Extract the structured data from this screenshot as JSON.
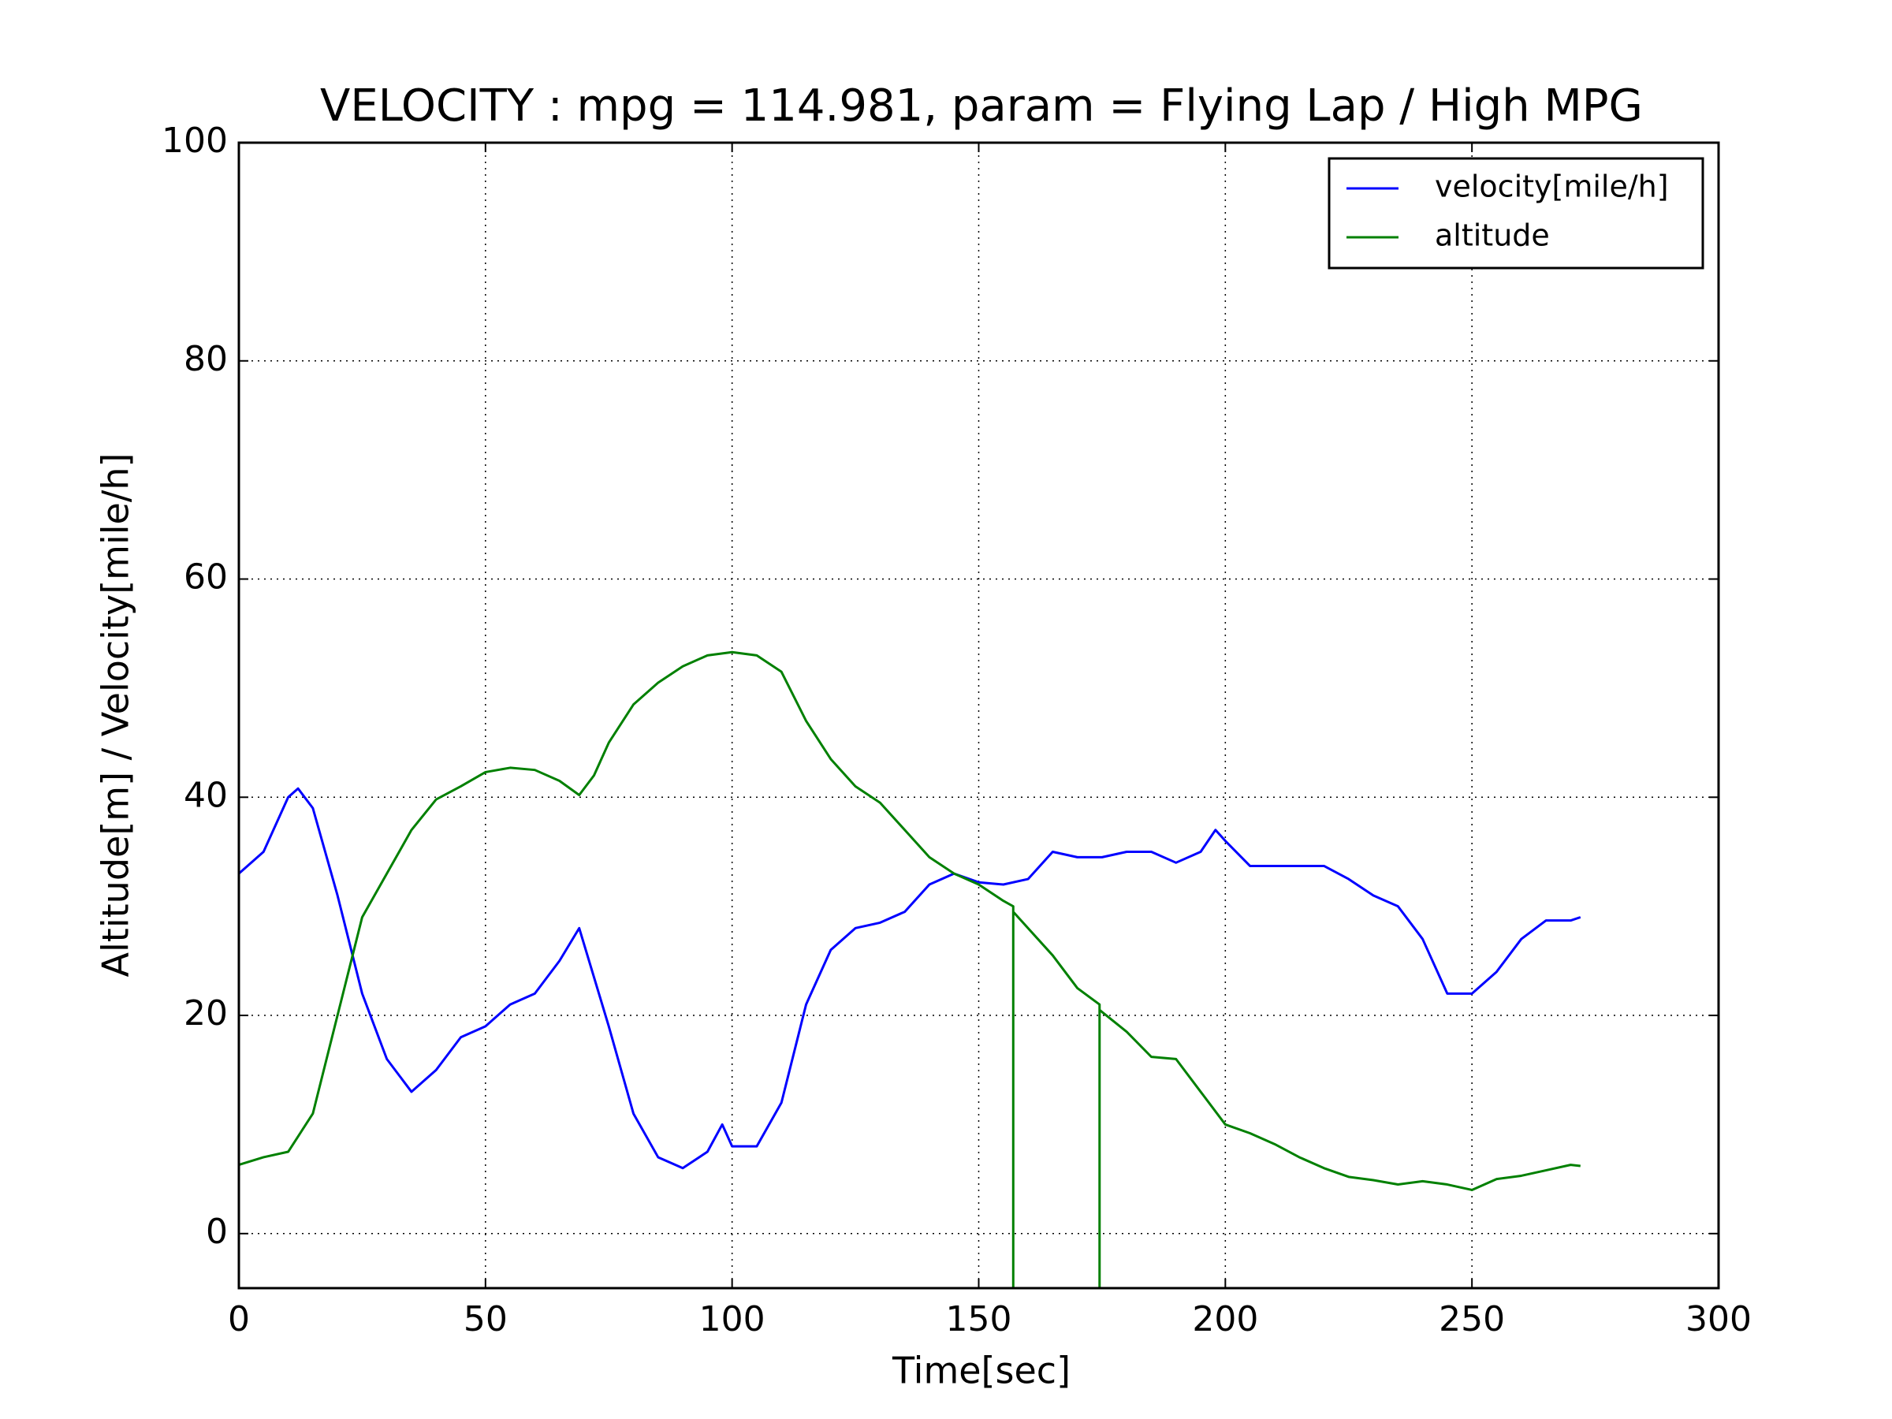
{
  "chart_data": {
    "type": "line",
    "title": "VELOCITY : mpg = 114.981, param = Flying Lap / High MPG",
    "x_label": "Time[sec]",
    "y_label": "Altitude[m] / Velocity[mile/h]",
    "xlim": [
      0,
      300
    ],
    "xticks": [
      0,
      50,
      100,
      150,
      200,
      250,
      300
    ],
    "ylim": [
      -5,
      100
    ],
    "yticks": [
      0,
      20,
      40,
      60,
      80,
      100
    ],
    "grid": true,
    "legend": "upper right",
    "series": [
      {
        "name": "velocity[mile/h]",
        "color": "#0000ff",
        "x": [
          0,
          5,
          10,
          12,
          15,
          20,
          25,
          30,
          35,
          40,
          45,
          50,
          55,
          60,
          65,
          69,
          75,
          80,
          85,
          90,
          95,
          98,
          100,
          105,
          110,
          115,
          120,
          125,
          130,
          135,
          140,
          145,
          150,
          155,
          160,
          165,
          170,
          175,
          180,
          185,
          190,
          195,
          198,
          200,
          205,
          210,
          215,
          220,
          225,
          230,
          235,
          240,
          245,
          250,
          255,
          260,
          265,
          270,
          272
        ],
        "values": [
          33,
          35,
          40,
          40.8,
          39,
          31,
          22,
          16,
          13,
          15,
          18,
          19,
          21,
          22,
          25,
          28,
          19,
          11,
          7,
          6,
          7.5,
          10,
          8,
          8,
          12,
          21,
          26,
          28,
          28.5,
          29.5,
          32,
          33,
          32.2,
          32,
          32.5,
          35,
          34.5,
          34.5,
          35,
          35,
          34,
          35,
          37,
          36,
          33.7,
          33.7,
          33.7,
          33.7,
          32.5,
          31,
          30,
          27,
          22,
          22,
          24,
          27,
          28.7,
          28.7,
          29
        ]
      },
      {
        "name": "altitude",
        "color": "#008000",
        "x": [
          0,
          5,
          10,
          15,
          20,
          25,
          30,
          35,
          40,
          45,
          50,
          55,
          60,
          65,
          69,
          72,
          75,
          80,
          85,
          90,
          95,
          100,
          105,
          110,
          115,
          120,
          125,
          130,
          135,
          140,
          145,
          150,
          155,
          157,
          157,
          157,
          160,
          165,
          170,
          174.5,
          174.5,
          174.5,
          180,
          185,
          190,
          195,
          200,
          205,
          210,
          215,
          220,
          225,
          230,
          235,
          240,
          245,
          250,
          255,
          260,
          265,
          270,
          272
        ],
        "values": [
          6.3,
          7,
          7.5,
          11,
          20,
          29,
          33,
          37,
          39.8,
          41,
          42.3,
          42.7,
          42.5,
          41.5,
          40.2,
          42,
          45,
          48.5,
          50.5,
          52,
          53,
          53.3,
          53,
          51.5,
          47,
          43.5,
          41,
          39.5,
          37,
          34.5,
          33,
          32,
          30.5,
          30,
          -10,
          29.5,
          28,
          25.5,
          22.5,
          21,
          -10,
          20.5,
          18.5,
          16.2,
          16,
          13,
          10,
          9.2,
          8.2,
          7,
          6,
          5.2,
          4.9,
          4.5,
          4.8,
          4.5,
          4,
          5,
          5.3,
          5.8,
          6.3,
          6.2
        ]
      }
    ]
  }
}
